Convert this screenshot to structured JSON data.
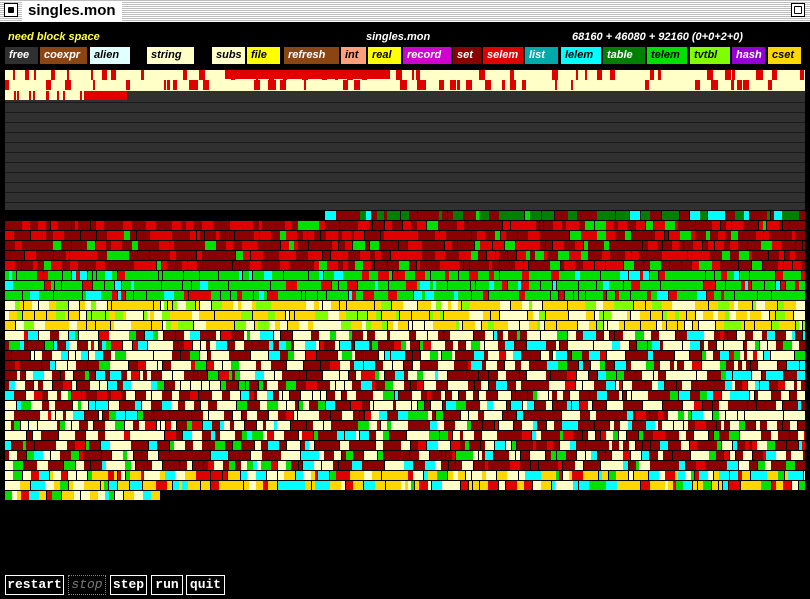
{
  "window": {
    "title": "singles.mon"
  },
  "header": {
    "status": "need block space",
    "heap_title": "singles.mon",
    "sizes": "68160 + 46080 + 92160  (0+0+2+0)"
  },
  "legend": [
    {
      "label": "free",
      "bg": "#303030",
      "fg": "#ffffff"
    },
    {
      "label": "coexpr",
      "bg": "#8b4513",
      "fg": "#ffffff"
    },
    {
      "label": "alien",
      "bg": "#e0ffff",
      "fg": "#000000"
    },
    {
      "label": "string",
      "bg": "#ffffc8",
      "fg": "#000000"
    },
    {
      "label": "subs",
      "bg": "#ffffc8",
      "fg": "#000000"
    },
    {
      "label": "file",
      "bg": "#ffff00",
      "fg": "#000000"
    },
    {
      "label": "refresh",
      "bg": "#8b4513",
      "fg": "#ffffff"
    },
    {
      "label": "int",
      "bg": "#ffa07a",
      "fg": "#000000"
    },
    {
      "label": "real",
      "bg": "#ffff00",
      "fg": "#000000"
    },
    {
      "label": "record",
      "bg": "#d000d0",
      "fg": "#ffffff"
    },
    {
      "label": "set",
      "bg": "#8b0000",
      "fg": "#ffffff"
    },
    {
      "label": "selem",
      "bg": "#e00000",
      "fg": "#ffffff"
    },
    {
      "label": "list",
      "bg": "#00aaaa",
      "fg": "#ffffff"
    },
    {
      "label": "lelem",
      "bg": "#00ffff",
      "fg": "#000000"
    },
    {
      "label": "table",
      "bg": "#008000",
      "fg": "#ffffff"
    },
    {
      "label": "telem",
      "bg": "#00e000",
      "fg": "#000000"
    },
    {
      "label": "tvtbl",
      "bg": "#80ff00",
      "fg": "#000000"
    },
    {
      "label": "hash",
      "bg": "#9400d3",
      "fg": "#ffffff"
    },
    {
      "label": "cset",
      "bg": "#ffd700",
      "fg": "#000000"
    }
  ],
  "colors": {
    "string": "#ffffc8",
    "string_mark": "#e00000",
    "free": "#303030",
    "set": "#8b0000",
    "selem": "#e00000",
    "telem": "#00e000",
    "table": "#008000",
    "lelem": "#00ffff",
    "cset": "#ffd700",
    "tvtbl": "#80ff00"
  },
  "controls": [
    {
      "name": "restart-button",
      "label": "restart",
      "enabled": true
    },
    {
      "name": "stop-button",
      "label": "stop",
      "enabled": false
    },
    {
      "name": "step-button",
      "label": "step",
      "enabled": true
    },
    {
      "name": "run-button",
      "label": "run",
      "enabled": true
    },
    {
      "name": "quit-button",
      "label": "quit",
      "enabled": true
    }
  ]
}
